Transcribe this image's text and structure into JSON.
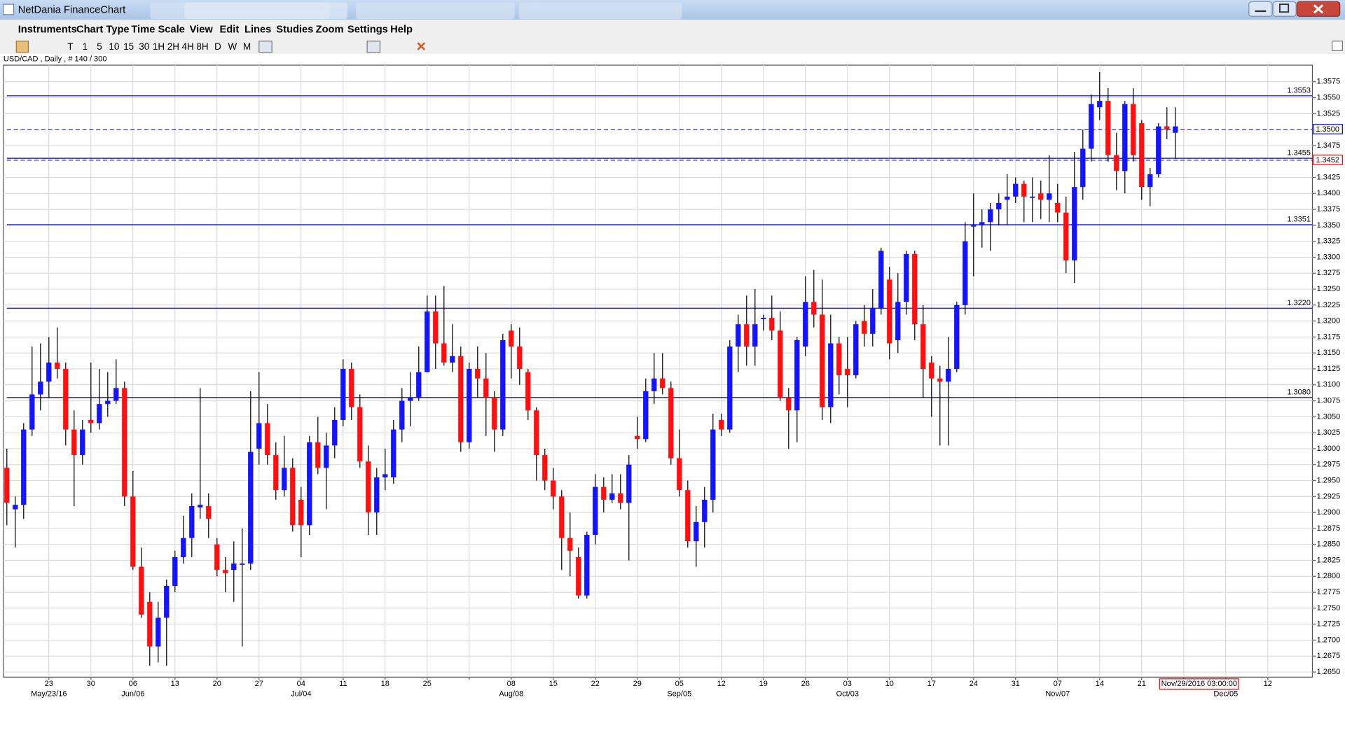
{
  "window": {
    "title": "NetDania FinanceChart"
  },
  "menu": [
    "Instruments",
    "Chart Type",
    "Time Scale",
    "View",
    "Edit",
    "Lines",
    "Studies",
    "Zoom",
    "Settings",
    "Help"
  ],
  "toolbar": [
    "T",
    "1",
    "5",
    "10",
    "15",
    "30",
    "1H",
    "2H",
    "4H",
    "8H",
    "D",
    "W",
    "M"
  ],
  "chart_data": {
    "type": "candlestick",
    "info": "USD/CAD , Daily , # 140 / 300",
    "up_color": "#1414ff",
    "down_color": "#ff1010",
    "grid": true,
    "ylim": [
      1.2642,
      1.3601
    ],
    "yticks": [
      {
        "value": 1.265,
        "label": "1.2650"
      },
      1.2675,
      {
        "value": 1.27,
        "label": "1.2700"
      },
      1.2725,
      {
        "value": 1.275,
        "label": "1.2750"
      },
      1.2775,
      {
        "value": 1.28,
        "label": "1.2800"
      },
      1.2825,
      {
        "value": 1.285,
        "label": "1.2850"
      },
      1.2875,
      {
        "value": 1.29,
        "label": "1.2900"
      },
      1.2925,
      {
        "value": 1.295,
        "label": "1.2950"
      },
      1.2975,
      {
        "value": 1.3,
        "label": "1.3000"
      },
      1.3025,
      {
        "value": 1.305,
        "label": "1.3050"
      },
      1.3075,
      {
        "value": 1.31,
        "label": "1.3100"
      },
      1.3125,
      {
        "value": 1.315,
        "label": "1.3150"
      },
      1.3175,
      {
        "value": 1.32,
        "label": "1.3200"
      },
      1.3225,
      {
        "value": 1.325,
        "label": "1.3250"
      },
      1.3275,
      {
        "value": 1.33,
        "label": "1.3300"
      },
      1.3325,
      {
        "value": 1.335,
        "label": "1.3350"
      },
      1.3375,
      {
        "value": 1.34,
        "label": "1.3400"
      },
      1.3425,
      1.3475,
      1.3525,
      {
        "value": 1.355,
        "label": "1.3550"
      },
      1.3575
    ],
    "week_labels": [
      "23",
      "30",
      "06",
      "13",
      "20",
      "27",
      "04",
      "11",
      "18",
      "25",
      null,
      "08",
      "15",
      "22",
      "29",
      "05",
      "12",
      "19",
      "26",
      "03",
      "10",
      "17",
      "24",
      "31",
      "07",
      "14",
      "21",
      null,
      null,
      "12"
    ],
    "month_labels": [
      "May/23/16",
      null,
      "Jun/06",
      null,
      null,
      null,
      "Jul/04",
      null,
      null,
      null,
      null,
      "Aug/08",
      null,
      null,
      null,
      "Sep/05",
      null,
      null,
      null,
      "Oct/03",
      null,
      null,
      null,
      null,
      "Nov/07",
      null,
      null,
      null,
      "Dec/05",
      null
    ],
    "cursor_label": "Nov/29/2016 03:00:00",
    "levels": [
      {
        "value": 1.3553,
        "label": "1.3553"
      },
      {
        "value": 1.3455,
        "label": "1.3455"
      },
      {
        "value": 1.3351,
        "label": "1.3351"
      },
      {
        "value": 1.322,
        "label": "1.3220"
      },
      {
        "value": 1.308,
        "label": "1.3080"
      }
    ],
    "price_markers": [
      {
        "value": 1.35,
        "label": "1.3500",
        "color": "#0000ff"
      },
      {
        "value": 1.3452,
        "label": "1.3452",
        "color": "#ff0000"
      }
    ],
    "ohlc": [
      [
        1.297,
        1.3,
        1.288,
        1.2915
      ],
      [
        1.2905,
        1.2925,
        1.2845,
        1.2912
      ],
      [
        1.2912,
        1.304,
        1.289,
        1.303
      ],
      [
        1.303,
        1.316,
        1.302,
        1.3085
      ],
      [
        1.3085,
        1.3165,
        1.306,
        1.3105
      ],
      [
        1.3105,
        1.3175,
        1.308,
        1.3135
      ],
      [
        1.3135,
        1.319,
        1.311,
        1.3125
      ],
      [
        1.3125,
        1.3135,
        1.3005,
        1.303
      ],
      [
        1.303,
        1.306,
        1.291,
        1.299
      ],
      [
        1.299,
        1.3045,
        1.2975,
        1.303
      ],
      [
        1.3045,
        1.3135,
        1.3025,
        1.304
      ],
      [
        1.304,
        1.3125,
        1.303,
        1.307
      ],
      [
        1.307,
        1.312,
        1.305,
        1.3075
      ],
      [
        1.3075,
        1.314,
        1.307,
        1.3095
      ],
      [
        1.3095,
        1.3105,
        1.291,
        1.2925
      ],
      [
        1.2925,
        1.2965,
        1.281,
        1.2815
      ],
      [
        1.2815,
        1.2845,
        1.2735,
        1.274
      ],
      [
        1.276,
        1.2775,
        1.266,
        1.269
      ],
      [
        1.269,
        1.276,
        1.2665,
        1.2735
      ],
      [
        1.2735,
        1.2795,
        1.266,
        1.2785
      ],
      [
        1.2785,
        1.284,
        1.2775,
        1.283
      ],
      [
        1.283,
        1.2895,
        1.282,
        1.286
      ],
      [
        1.286,
        1.293,
        1.283,
        1.291
      ],
      [
        1.2908,
        1.3095,
        1.289,
        1.2912
      ],
      [
        1.291,
        1.293,
        1.286,
        1.289
      ],
      [
        1.285,
        1.286,
        1.28,
        1.281
      ],
      [
        1.281,
        1.283,
        1.2775,
        1.2805
      ],
      [
        1.281,
        1.2855,
        1.276,
        1.282
      ],
      [
        1.282,
        1.2875,
        1.269,
        1.282
      ],
      [
        1.282,
        1.309,
        1.281,
        1.2995
      ],
      [
        1.3,
        1.312,
        1.2975,
        1.304
      ],
      [
        1.304,
        1.307,
        1.2975,
        1.299
      ],
      [
        1.299,
        1.301,
        1.292,
        1.2935
      ],
      [
        1.2935,
        1.302,
        1.2925,
        1.297
      ],
      [
        1.297,
        1.2985,
        1.287,
        1.288
      ],
      [
        1.292,
        1.294,
        1.283,
        1.288
      ],
      [
        1.288,
        1.302,
        1.2865,
        1.301
      ],
      [
        1.301,
        1.305,
        1.296,
        1.297
      ],
      [
        1.297,
        1.3025,
        1.2905,
        1.3005
      ],
      [
        1.3005,
        1.3065,
        1.2985,
        1.3045
      ],
      [
        1.3045,
        1.314,
        1.3035,
        1.3125
      ],
      [
        1.3125,
        1.3135,
        1.3045,
        1.3065
      ],
      [
        1.3065,
        1.3085,
        1.297,
        1.298
      ],
      [
        1.298,
        1.3005,
        1.2865,
        1.29
      ],
      [
        1.29,
        1.297,
        1.2865,
        1.2955
      ],
      [
        1.2955,
        1.3,
        1.2935,
        1.296
      ],
      [
        1.2955,
        1.3045,
        1.2945,
        1.303
      ],
      [
        1.303,
        1.3095,
        1.301,
        1.3075
      ],
      [
        1.3075,
        1.312,
        1.3035,
        1.308
      ],
      [
        1.308,
        1.316,
        1.3075,
        1.312
      ],
      [
        1.312,
        1.324,
        1.312,
        1.3215
      ],
      [
        1.3215,
        1.324,
        1.3125,
        1.3165
      ],
      [
        1.3165,
        1.3255,
        1.313,
        1.3135
      ],
      [
        1.3135,
        1.3195,
        1.312,
        1.3145
      ],
      [
        1.3145,
        1.316,
        1.2995,
        1.301
      ],
      [
        1.301,
        1.3135,
        1.3,
        1.3125
      ],
      [
        1.3125,
        1.316,
        1.308,
        1.311
      ],
      [
        1.311,
        1.315,
        1.302,
        1.308
      ],
      [
        1.308,
        1.309,
        1.2995,
        1.303
      ],
      [
        1.303,
        1.318,
        1.302,
        1.317
      ],
      [
        1.3185,
        1.3195,
        1.311,
        1.316
      ],
      [
        1.316,
        1.319,
        1.31,
        1.3125
      ],
      [
        1.312,
        1.3125,
        1.3045,
        1.306
      ],
      [
        1.306,
        1.3065,
        1.295,
        1.299
      ],
      [
        1.299,
        1.3,
        1.2935,
        1.295
      ],
      [
        1.295,
        1.297,
        1.2905,
        1.2925
      ],
      [
        1.2925,
        1.2935,
        1.281,
        1.286
      ],
      [
        1.286,
        1.29,
        1.28,
        1.284
      ],
      [
        1.283,
        1.2845,
        1.2765,
        1.277
      ],
      [
        1.277,
        1.287,
        1.2765,
        1.2865
      ],
      [
        1.2865,
        1.296,
        1.285,
        1.294
      ],
      [
        1.294,
        1.2955,
        1.29,
        1.292
      ],
      [
        1.292,
        1.296,
        1.2915,
        1.293
      ],
      [
        1.293,
        1.296,
        1.2905,
        1.2915
      ],
      [
        1.2915,
        1.299,
        1.2825,
        1.2975
      ],
      [
        1.302,
        1.305,
        1.3,
        1.3015
      ],
      [
        1.3015,
        1.311,
        1.301,
        1.309
      ],
      [
        1.309,
        1.315,
        1.307,
        1.311
      ],
      [
        1.311,
        1.315,
        1.3085,
        1.3095
      ],
      [
        1.3095,
        1.3105,
        1.2975,
        1.2985
      ],
      [
        1.2985,
        1.303,
        1.2925,
        1.2935
      ],
      [
        1.2935,
        1.295,
        1.2845,
        1.2855
      ],
      [
        1.2855,
        1.291,
        1.2815,
        1.2885
      ],
      [
        1.2885,
        1.294,
        1.2845,
        1.292
      ],
      [
        1.292,
        1.3055,
        1.29,
        1.303
      ],
      [
        1.3045,
        1.3055,
        1.302,
        1.303
      ],
      [
        1.303,
        1.317,
        1.3025,
        1.316
      ],
      [
        1.316,
        1.321,
        1.312,
        1.3195
      ],
      [
        1.3195,
        1.324,
        1.313,
        1.316
      ],
      [
        1.316,
        1.325,
        1.313,
        1.3195
      ],
      [
        1.3203,
        1.321,
        1.3185,
        1.3205
      ],
      [
        1.3205,
        1.324,
        1.317,
        1.3185
      ],
      [
        1.3185,
        1.3215,
        1.3075,
        1.308
      ],
      [
        1.308,
        1.3095,
        1.3,
        1.306
      ],
      [
        1.306,
        1.3175,
        1.301,
        1.317
      ],
      [
        1.316,
        1.327,
        1.3145,
        1.323
      ],
      [
        1.323,
        1.328,
        1.319,
        1.321
      ],
      [
        1.321,
        1.3265,
        1.3045,
        1.3065
      ],
      [
        1.3065,
        1.321,
        1.304,
        1.3165
      ],
      [
        1.3165,
        1.3175,
        1.3085,
        1.3115
      ],
      [
        1.3125,
        1.3175,
        1.3065,
        1.3115
      ],
      [
        1.3115,
        1.32,
        1.311,
        1.3195
      ],
      [
        1.32,
        1.3225,
        1.316,
        1.318
      ],
      [
        1.318,
        1.325,
        1.316,
        1.322
      ],
      [
        1.322,
        1.3315,
        1.321,
        1.331
      ],
      [
        1.3265,
        1.3285,
        1.314,
        1.3165
      ],
      [
        1.317,
        1.3275,
        1.315,
        1.323
      ],
      [
        1.323,
        1.331,
        1.321,
        1.3305
      ],
      [
        1.3305,
        1.331,
        1.317,
        1.3195
      ],
      [
        1.3195,
        1.3225,
        1.308,
        1.3125
      ],
      [
        1.3135,
        1.3145,
        1.305,
        1.311
      ],
      [
        1.311,
        1.313,
        1.3005,
        1.3105
      ],
      [
        1.3105,
        1.3175,
        1.3005,
        1.3125
      ],
      [
        1.3125,
        1.323,
        1.312,
        1.3225
      ],
      [
        1.3225,
        1.3355,
        1.321,
        1.3325
      ],
      [
        1.335,
        1.34,
        1.327,
        1.335
      ],
      [
        1.335,
        1.3375,
        1.3315,
        1.3355
      ],
      [
        1.3355,
        1.3385,
        1.331,
        1.3375
      ],
      [
        1.3375,
        1.34,
        1.335,
        1.3385
      ],
      [
        1.339,
        1.343,
        1.335,
        1.3395
      ],
      [
        1.3395,
        1.3425,
        1.3385,
        1.3415
      ],
      [
        1.3415,
        1.342,
        1.3355,
        1.3395
      ],
      [
        1.3393,
        1.3425,
        1.3355,
        1.3395
      ],
      [
        1.34,
        1.342,
        1.336,
        1.339
      ],
      [
        1.339,
        1.346,
        1.3355,
        1.34
      ],
      [
        1.3385,
        1.3415,
        1.3355,
        1.337
      ],
      [
        1.337,
        1.3395,
        1.3275,
        1.3295
      ],
      [
        1.3295,
        1.3465,
        1.326,
        1.341
      ],
      [
        1.341,
        1.35,
        1.339,
        1.347
      ],
      [
        1.347,
        1.3555,
        1.345,
        1.354
      ],
      [
        1.3535,
        1.359,
        1.3515,
        1.3545
      ],
      [
        1.3545,
        1.3565,
        1.345,
        1.346
      ],
      [
        1.346,
        1.3495,
        1.3405,
        1.3435
      ],
      [
        1.3435,
        1.3545,
        1.34,
        1.354
      ],
      [
        1.354,
        1.3565,
        1.345,
        1.346
      ],
      [
        1.351,
        1.3515,
        1.339,
        1.341
      ],
      [
        1.341,
        1.344,
        1.338,
        1.343
      ],
      [
        1.343,
        1.351,
        1.3425,
        1.3505
      ],
      [
        1.3505,
        1.3535,
        1.3485,
        1.35
      ],
      [
        1.3495,
        1.3535,
        1.3455,
        1.3505
      ]
    ]
  }
}
